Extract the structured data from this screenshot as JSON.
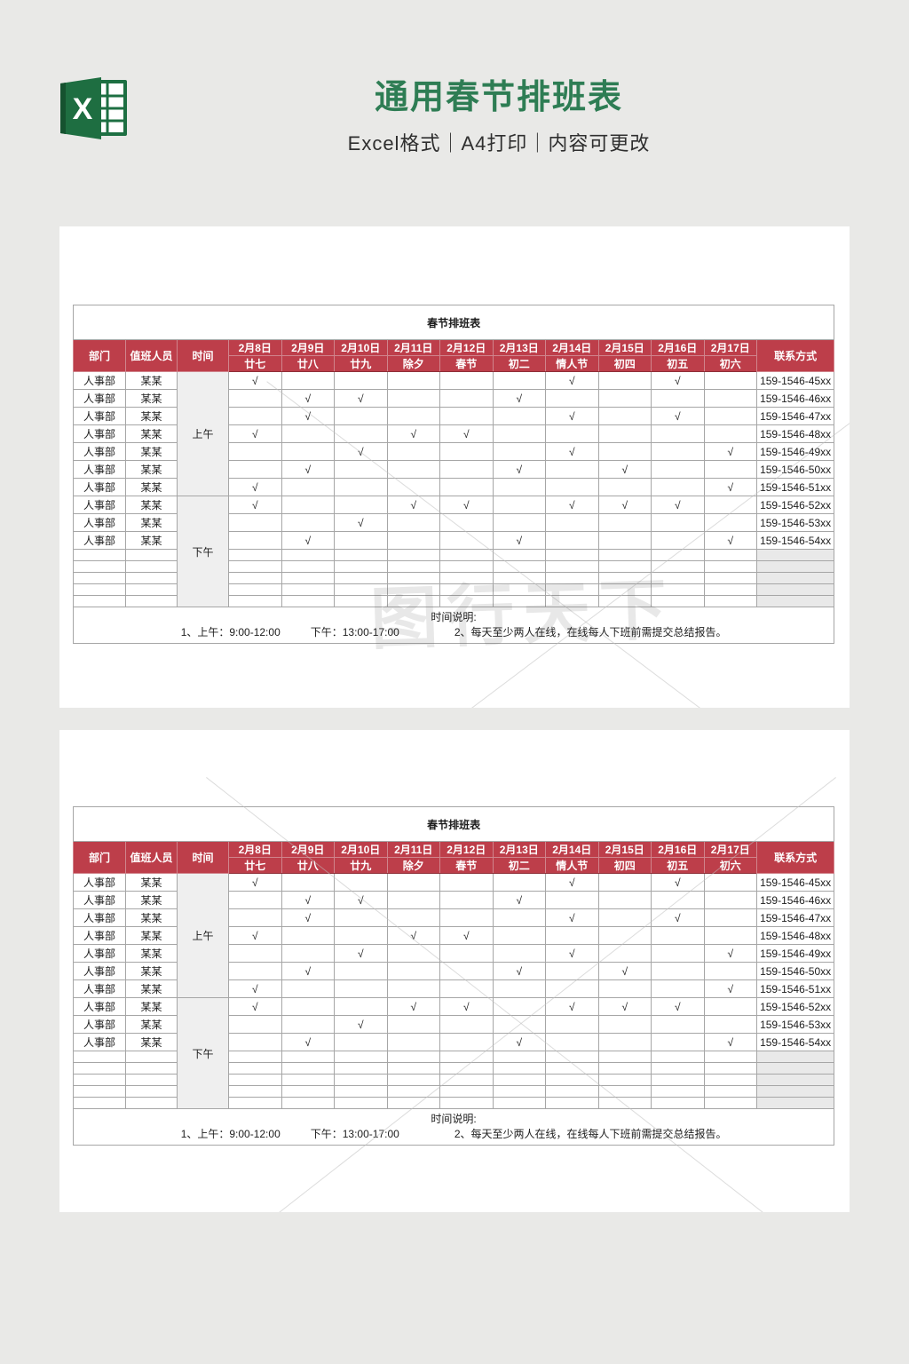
{
  "header": {
    "title": "通用春节排班表",
    "subtitle": "Excel格式｜A4打印｜内容可更改"
  },
  "colors": {
    "page_background": "#e9e9e7",
    "title_green": "#2e7d54",
    "table_header_red": "#bd3e4a",
    "table_title_red": "#c13946",
    "excel_icon_green": "#1d6f42",
    "empty_contact_gray": "#e9e9e9",
    "time_column_gray": "#efefef"
  },
  "watermark": {
    "logo_text": "图行天下"
  },
  "panel_count": 2,
  "schedule": {
    "title": "春节排班表",
    "check_mark": "√",
    "columns": {
      "dept": "部门",
      "person": "值班人员",
      "time": "时间",
      "contact": "联系方式"
    },
    "days": [
      {
        "date": "2月8日",
        "festival": "廿七"
      },
      {
        "date": "2月9日",
        "festival": "廿八"
      },
      {
        "date": "2月10日",
        "festival": "廿九"
      },
      {
        "date": "2月11日",
        "festival": "除夕"
      },
      {
        "date": "2月12日",
        "festival": "春节"
      },
      {
        "date": "2月13日",
        "festival": "初二"
      },
      {
        "date": "2月14日",
        "festival": "情人节"
      },
      {
        "date": "2月15日",
        "festival": "初四"
      },
      {
        "date": "2月16日",
        "festival": "初五"
      },
      {
        "date": "2月17日",
        "festival": "初六"
      }
    ],
    "sections": [
      {
        "time_label": "上午",
        "empty_rows": 0,
        "rows": [
          {
            "dept": "人事部",
            "person": "某某",
            "checks": [
              1,
              7,
              9
            ],
            "phone": "159-1546-45xx"
          },
          {
            "dept": "人事部",
            "person": "某某",
            "checks": [
              2,
              3,
              6
            ],
            "phone": "159-1546-46xx"
          },
          {
            "dept": "人事部",
            "person": "某某",
            "checks": [
              2,
              7,
              9
            ],
            "phone": "159-1546-47xx"
          },
          {
            "dept": "人事部",
            "person": "某某",
            "checks": [
              1,
              4,
              5
            ],
            "phone": "159-1546-48xx"
          },
          {
            "dept": "人事部",
            "person": "某某",
            "checks": [
              3,
              7,
              10
            ],
            "phone": "159-1546-49xx"
          },
          {
            "dept": "人事部",
            "person": "某某",
            "checks": [
              2,
              6,
              8
            ],
            "phone": "159-1546-50xx"
          },
          {
            "dept": "人事部",
            "person": "某某",
            "checks": [
              1,
              10
            ],
            "phone": "159-1546-51xx"
          }
        ]
      },
      {
        "time_label": "下午",
        "empty_rows": 5,
        "rows": [
          {
            "dept": "人事部",
            "person": "某某",
            "checks": [
              1,
              4,
              5,
              7,
              8,
              9
            ],
            "phone": "159-1546-52xx"
          },
          {
            "dept": "人事部",
            "person": "某某",
            "checks": [
              3
            ],
            "phone": "159-1546-53xx"
          },
          {
            "dept": "人事部",
            "person": "某某",
            "checks": [
              2,
              6,
              10
            ],
            "phone": "159-1546-54xx"
          }
        ]
      }
    ],
    "notes": {
      "heading": "时间说明:",
      "items": [
        "1、上午：9:00-12:00",
        "下午：13:00-17:00",
        "2、每天至少两人在线，在线每人下班前需提交总结报告。"
      ]
    }
  }
}
